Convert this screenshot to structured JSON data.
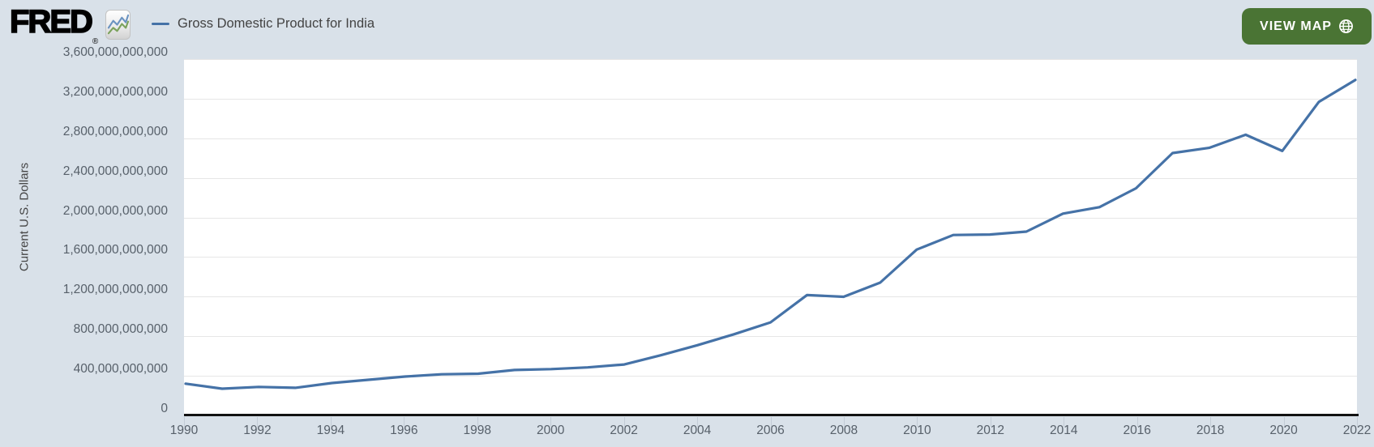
{
  "header": {
    "logo_text": "FRED",
    "logo_registered": "®",
    "legend": {
      "series_label": "Gross Domestic Product for India",
      "marker_color": "#4572a7"
    },
    "view_map_button": {
      "label": "VIEW MAP",
      "icon": "globe-icon",
      "bg_color": "#4a7434",
      "text_color": "#ffffff"
    }
  },
  "theme": {
    "page_bg": "#d9e1e9",
    "plot_bg": "#ffffff",
    "gridline_color": "#e6e6e6",
    "axis_line_color": "#121212",
    "tick_color": "#c3ccd6",
    "tick_label_color": "#57606a",
    "series_color": "#4572a7"
  },
  "chart_data": {
    "type": "line",
    "title": "Gross Domestic Product for India",
    "xlabel": "",
    "ylabel": "Current U.S. Dollars",
    "legend_position": "top-left",
    "grid": "horizontal",
    "xlim": [
      1990,
      2022
    ],
    "ylim": [
      0,
      3600000000000
    ],
    "ytick_interval": 400000000000,
    "ytick_labels": [
      "3,600,000,000,000",
      "3,200,000,000,000",
      "2,800,000,000,000",
      "2,400,000,000,000",
      "2,000,000,000,000",
      "1,600,000,000,000",
      "1,200,000,000,000",
      "800,000,000,000",
      "400,000,000,000",
      "0"
    ],
    "xtick_labels": [
      "1990",
      "1992",
      "1994",
      "1996",
      "1998",
      "2000",
      "2002",
      "2004",
      "2006",
      "2008",
      "2010",
      "2012",
      "2014",
      "2016",
      "2018",
      "2020",
      "2022"
    ],
    "x": [
      1990,
      1991,
      1992,
      1993,
      1994,
      1995,
      1996,
      1997,
      1998,
      1999,
      2000,
      2001,
      2002,
      2003,
      2004,
      2005,
      2006,
      2007,
      2008,
      2009,
      2010,
      2011,
      2012,
      2013,
      2014,
      2015,
      2016,
      2017,
      2018,
      2019,
      2020,
      2021,
      2022
    ],
    "series": [
      {
        "name": "Gross Domestic Product for India",
        "color": "#4572a7",
        "values": [
          321000000000,
          270000000000,
          288000000000,
          279000000000,
          327000000000,
          360000000000,
          393000000000,
          416000000000,
          421000000000,
          459000000000,
          468000000000,
          485000000000,
          515000000000,
          608000000000,
          709000000000,
          820000000000,
          940000000000,
          1217000000000,
          1199000000000,
          1342000000000,
          1676000000000,
          1823000000000,
          1828000000000,
          1857000000000,
          2039000000000,
          2104000000000,
          2295000000000,
          2651000000000,
          2703000000000,
          2836000000000,
          2672000000000,
          3167000000000,
          3390000000000
        ]
      }
    ]
  }
}
